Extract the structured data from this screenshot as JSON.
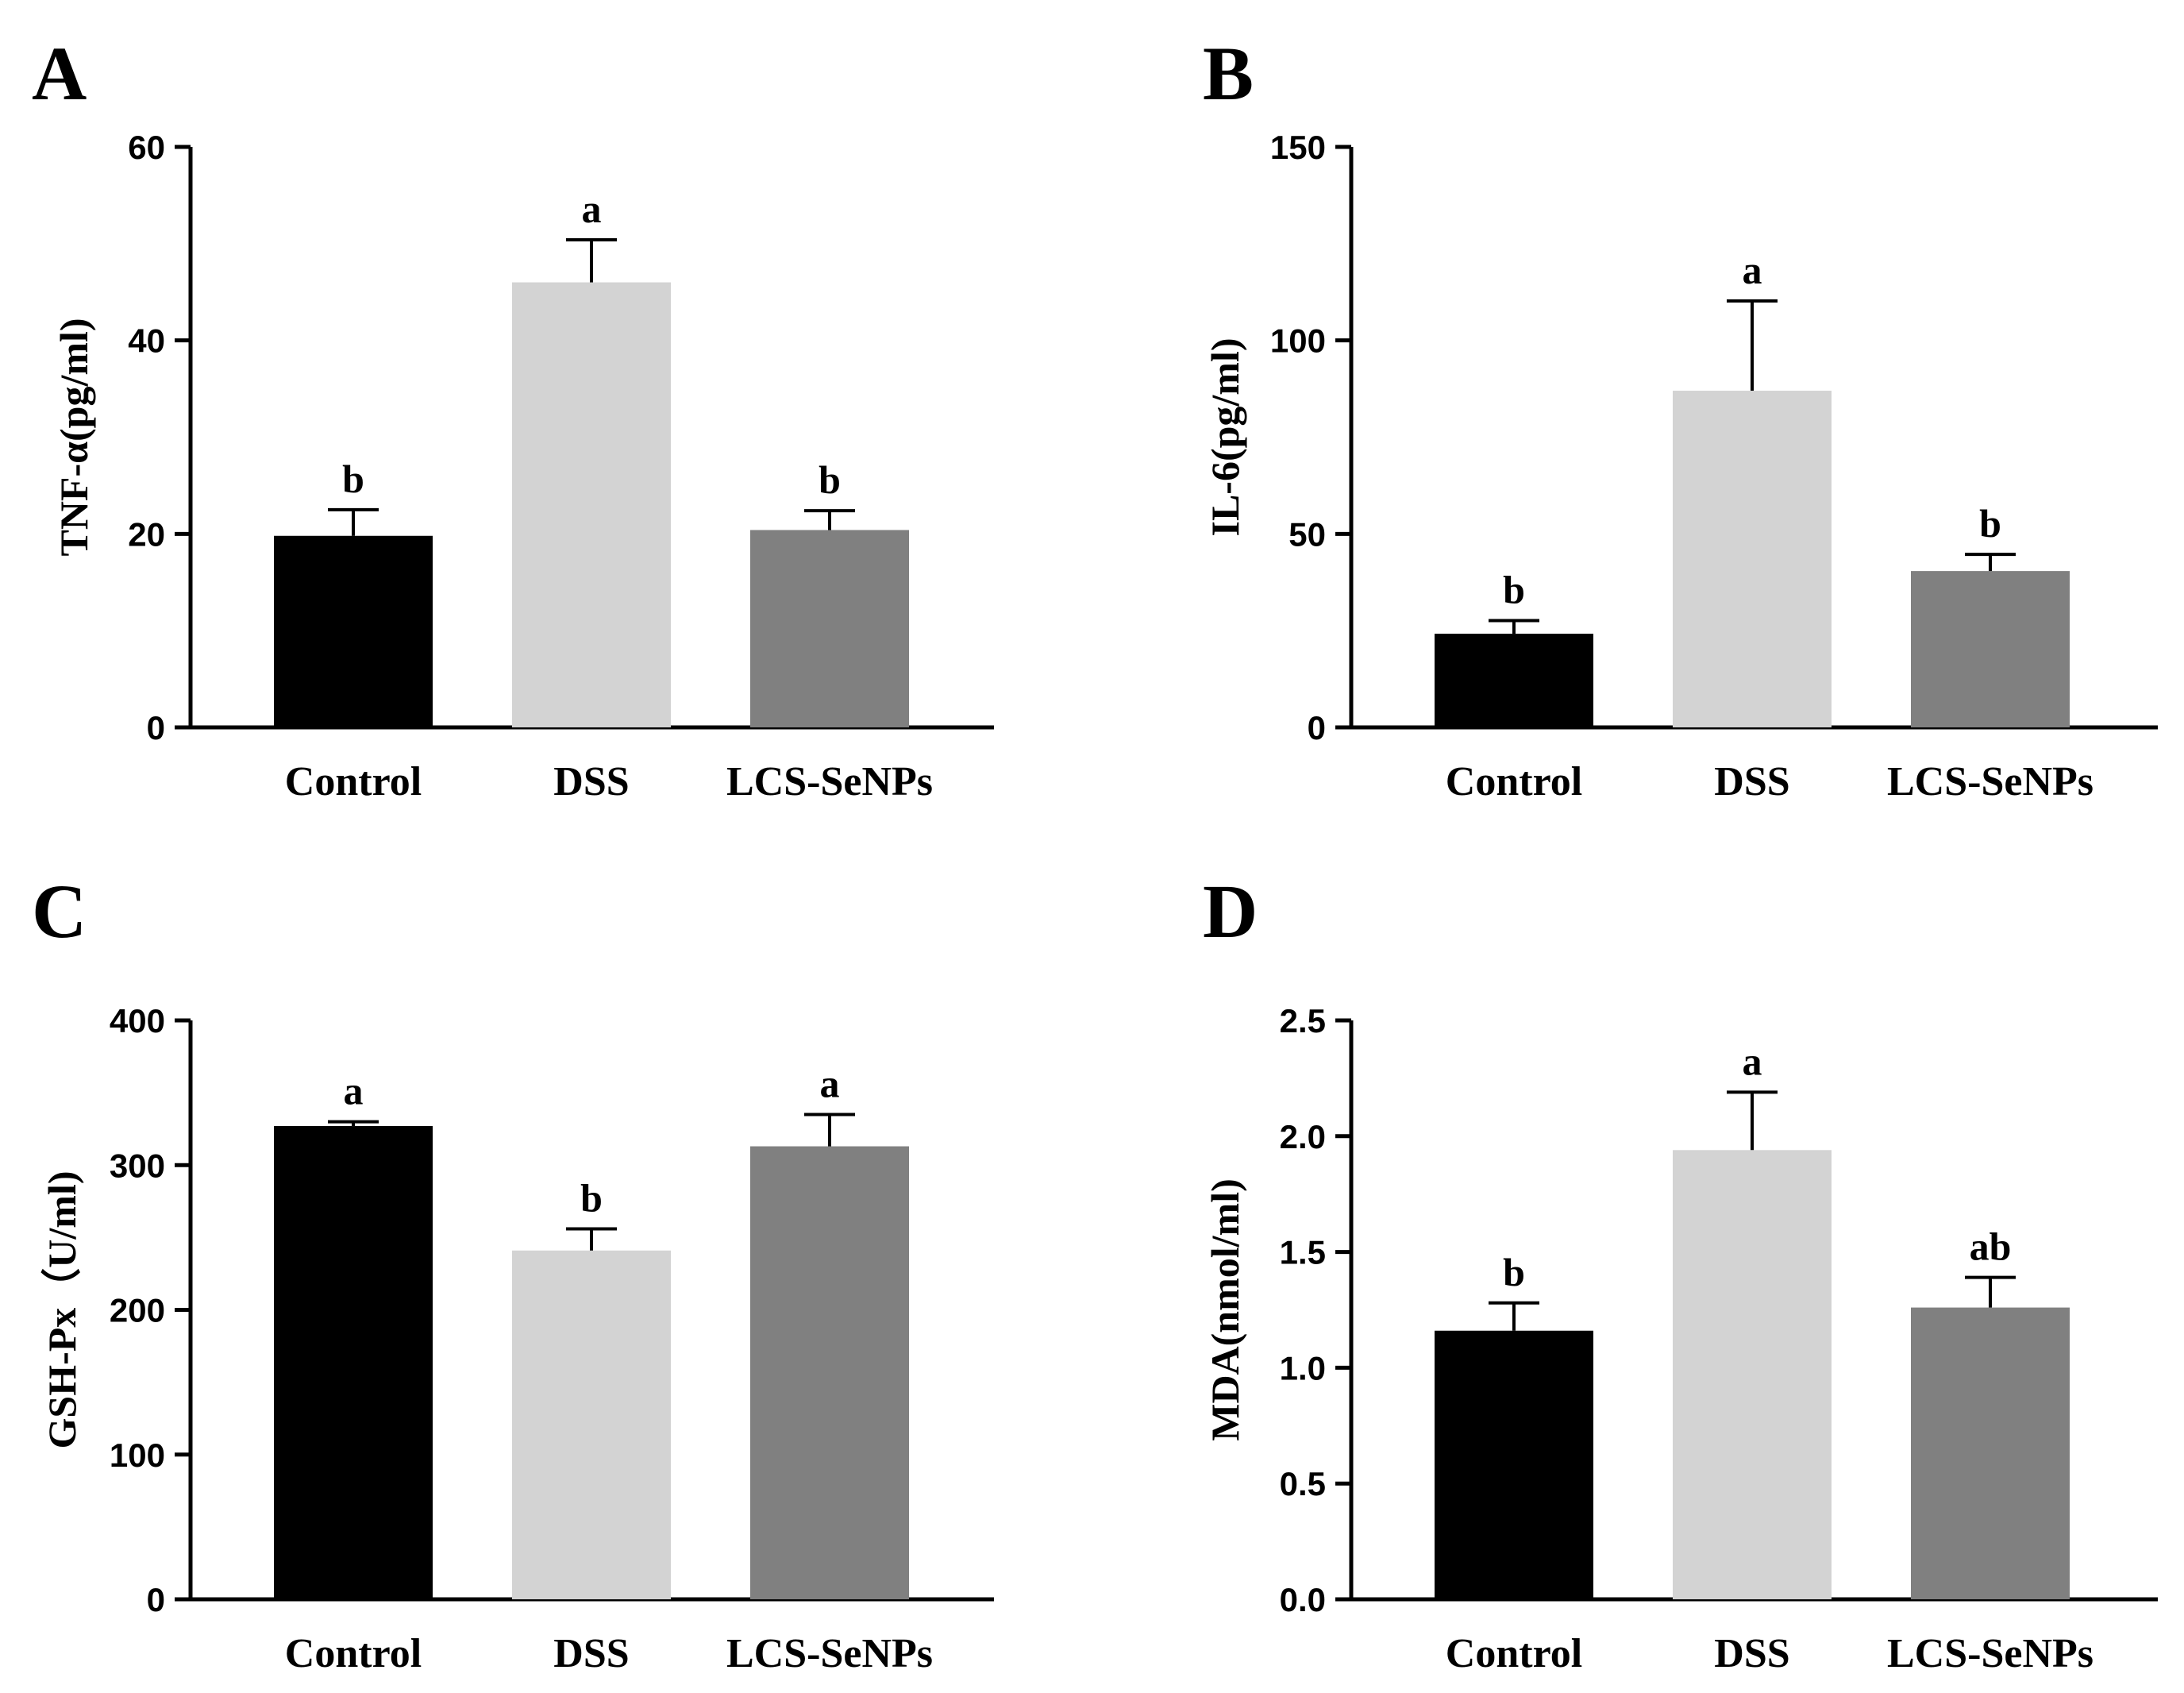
{
  "chart_data": [
    {
      "panel": "A",
      "type": "bar",
      "ylabel": "TNF-α(pg/ml)",
      "ylim": [
        0,
        60
      ],
      "yticks": [
        0,
        20,
        40,
        60
      ],
      "ytick_labels": [
        "0",
        "20",
        "40",
        "60"
      ],
      "categories": [
        "Control",
        "DSS",
        "LCS-SeNPs"
      ],
      "values": [
        19.8,
        46.0,
        20.4
      ],
      "errors": [
        2.7,
        4.4,
        2.0
      ],
      "significance": [
        "b",
        "a",
        "b"
      ],
      "colors": [
        "#000000",
        "#d3d3d3",
        "#808080"
      ]
    },
    {
      "panel": "B",
      "type": "bar",
      "ylabel": "IL-6(pg/ml)",
      "ylim": [
        0,
        150
      ],
      "yticks": [
        0,
        50,
        100,
        150
      ],
      "ytick_labels": [
        "0",
        "50",
        "100",
        "150"
      ],
      "categories": [
        "Control",
        "DSS",
        "LCS-SeNPs"
      ],
      "values": [
        24.2,
        87.0,
        40.4
      ],
      "errors": [
        3.4,
        23.2,
        4.3
      ],
      "significance": [
        "b",
        "a",
        "b"
      ],
      "colors": [
        "#000000",
        "#d3d3d3",
        "#808080"
      ]
    },
    {
      "panel": "C",
      "type": "bar",
      "ylabel": "GSH-Px（U/ml)",
      "ylim": [
        0,
        400
      ],
      "yticks": [
        0,
        100,
        200,
        300,
        400
      ],
      "ytick_labels": [
        "0",
        "100",
        "200",
        "300",
        "400"
      ],
      "categories": [
        "Control",
        "DSS",
        "LCS-SeNPs"
      ],
      "values": [
        327,
        241,
        313
      ],
      "errors": [
        3,
        15,
        22
      ],
      "significance": [
        "a",
        "b",
        "a"
      ],
      "colors": [
        "#000000",
        "#d3d3d3",
        "#808080"
      ]
    },
    {
      "panel": "D",
      "type": "bar",
      "ylabel": "MDA(nmol/ml)",
      "ylim": [
        0,
        2.5
      ],
      "yticks": [
        0,
        0.5,
        1.0,
        1.5,
        2.0,
        2.5
      ],
      "ytick_labels": [
        "0.0",
        "0.5",
        "1.0",
        "1.5",
        "2.0",
        "2.5"
      ],
      "categories": [
        "Control",
        "DSS",
        "LCS-SeNPs"
      ],
      "values": [
        1.16,
        1.94,
        1.26
      ],
      "errors": [
        0.12,
        0.25,
        0.13
      ],
      "significance": [
        "b",
        "a",
        "ab"
      ],
      "colors": [
        "#000000",
        "#d3d3d3",
        "#808080"
      ]
    }
  ]
}
